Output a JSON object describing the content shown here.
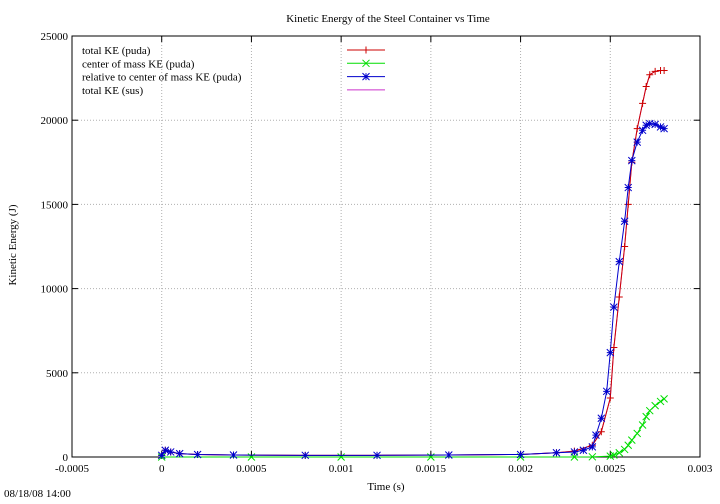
{
  "timestamp": "08/18/08 14:00",
  "chart_data": {
    "type": "line",
    "title": "Kinetic Energy of the Steel Container vs Time",
    "xlabel": "Time (s)",
    "ylabel": "Kinetic Energy (J)",
    "xlim": [
      -0.0005,
      0.003
    ],
    "ylim": [
      0,
      25000
    ],
    "xticks": [
      -0.0005,
      0,
      0.0005,
      0.001,
      0.0015,
      0.002,
      0.0025,
      0.003
    ],
    "xtick_labels": [
      "-0.0005",
      "0",
      "0.0005",
      "0.001",
      "0.0015",
      "0.002",
      "0.0025",
      "0.003"
    ],
    "yticks": [
      0,
      5000,
      10000,
      15000,
      20000,
      25000
    ],
    "ytick_labels": [
      "0",
      "5000",
      "10000",
      "15000",
      "20000",
      "25000"
    ],
    "grid": true,
    "legend_position": "top-left",
    "series": [
      {
        "name": "total KE (puda)",
        "color": "#cc0000",
        "marker": "plus",
        "x": [
          0,
          2e-05,
          5e-05,
          0.0001,
          0.0002,
          0.0004,
          0.0008,
          0.0012,
          0.0016,
          0.002,
          0.0022,
          0.0023,
          0.0024,
          0.00245,
          0.0025,
          0.00252,
          0.00255,
          0.00258,
          0.0026,
          0.00262,
          0.00265,
          0.00268,
          0.0027,
          0.00272,
          0.00275,
          0.00278,
          0.0028
        ],
        "y": [
          100,
          400,
          300,
          200,
          150,
          120,
          100,
          100,
          120,
          150,
          250,
          350,
          700,
          1500,
          3500,
          6500,
          9500,
          12500,
          15000,
          17500,
          19500,
          21000,
          22000,
          22700,
          22900,
          22950,
          22950
        ]
      },
      {
        "name": "center of mass KE (puda)",
        "color": "#00dd00",
        "marker": "cross",
        "x": [
          0,
          0.0005,
          0.001,
          0.0015,
          0.002,
          0.0023,
          0.0024,
          0.0025,
          0.00252,
          0.00255,
          0.00258,
          0.0026,
          0.00262,
          0.00265,
          0.00268,
          0.0027,
          0.00272,
          0.00275,
          0.00278,
          0.0028
        ],
        "y": [
          0,
          0,
          0,
          0,
          0,
          0,
          10,
          50,
          120,
          250,
          450,
          700,
          1000,
          1400,
          1900,
          2400,
          2750,
          3050,
          3300,
          3450
        ]
      },
      {
        "name": "relative to center of mass KE (puda)",
        "color": "#0000cc",
        "marker": "star",
        "x": [
          0,
          2e-05,
          5e-05,
          0.0001,
          0.0002,
          0.0004,
          0.0008,
          0.0012,
          0.0016,
          0.002,
          0.0022,
          0.0023,
          0.00235,
          0.0024,
          0.00242,
          0.00245,
          0.00248,
          0.0025,
          0.00252,
          0.00255,
          0.00258,
          0.0026,
          0.00262,
          0.00265,
          0.00268,
          0.0027,
          0.00272,
          0.00275,
          0.00278,
          0.0028
        ],
        "y": [
          100,
          400,
          300,
          200,
          150,
          120,
          100,
          100,
          120,
          150,
          250,
          300,
          400,
          600,
          1300,
          2300,
          3900,
          6200,
          8900,
          11600,
          14000,
          16000,
          17600,
          18700,
          19400,
          19700,
          19800,
          19750,
          19600,
          19500
        ]
      },
      {
        "name": "total KE (sus)",
        "color": "#cc33cc",
        "marker": "none",
        "x": [
          0,
          2e-05,
          5e-05,
          0.0001,
          0.0002,
          0.0004,
          0.0008,
          0.0012,
          0.0016,
          0.002,
          0.0022,
          0.0023,
          0.0024,
          0.00245,
          0.0025,
          0.00252,
          0.00255,
          0.00258,
          0.0026,
          0.00262,
          0.00265,
          0.00268,
          0.0027,
          0.00272,
          0.00275,
          0.00278,
          0.0028
        ],
        "y": [
          100,
          400,
          300,
          200,
          150,
          120,
          100,
          100,
          120,
          150,
          250,
          350,
          700,
          1500,
          3500,
          6500,
          9500,
          12500,
          15000,
          17500,
          19500,
          21000,
          22000,
          22700,
          22900,
          22950,
          22950
        ]
      }
    ]
  }
}
